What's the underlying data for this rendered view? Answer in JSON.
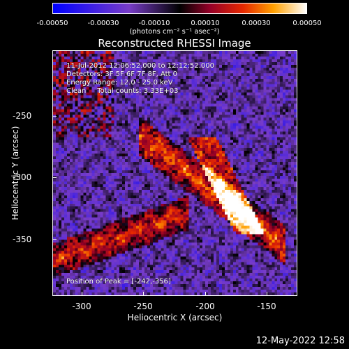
{
  "colorbar": {
    "ticks": [
      "-0.00050",
      "-0.00030",
      "-0.00010",
      "0.00010",
      "0.00030",
      "0.00050"
    ],
    "units": "(photons cm⁻² s⁻¹ asec⁻²)"
  },
  "title": "Reconstructed RHESSI Image",
  "info": {
    "time": "11-Jul-2012 12:06:52.000 to 12:12:52.000",
    "detectors": "Detectors: 3F 5F 6F 7F 8F, Att 0",
    "energy": "Energy Range: 12.0 - 25.0 keV",
    "clean": "Clean     Total counts: 3.33E+03",
    "peak": "Position of Peak = [-242,-356]"
  },
  "axes": {
    "xlabel": "Heliocentric X (arcsec)",
    "ylabel": "Heliocentric Y (arcsec)",
    "xticks": [
      "-300",
      "-250",
      "-200",
      "-150"
    ],
    "yticks": [
      "-250",
      "-300",
      "-350"
    ]
  },
  "footer": "12-May-2022 12:58"
}
